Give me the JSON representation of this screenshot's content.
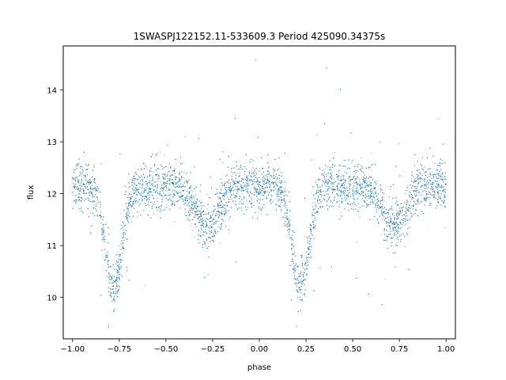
{
  "chart_data": {
    "type": "scatter",
    "title": "1SWASPJ122152.11-533609.3 Period 425090.34375s",
    "xlabel": "phase",
    "ylabel": "flux",
    "xlim": [
      -1.05,
      1.05
    ],
    "ylim": [
      9.2,
      14.85
    ],
    "xticks": [
      -1.0,
      -0.75,
      -0.5,
      -0.25,
      0.0,
      0.25,
      0.5,
      0.75,
      1.0
    ],
    "xtick_labels": [
      "−1.00",
      "−0.75",
      "−0.50",
      "−0.25",
      "0.00",
      "0.25",
      "0.50",
      "0.75",
      "1.00"
    ],
    "yticks": [
      10,
      11,
      12,
      13,
      14
    ],
    "ytick_labels": [
      "10",
      "11",
      "12",
      "13",
      "14"
    ],
    "grid": false,
    "marker_color": "#1f77b4",
    "light_curve": {
      "baseline_flux": 12.15,
      "primary_eclipses": [
        {
          "phase": -0.78,
          "min_flux": 10.2
        },
        {
          "phase": 0.22,
          "min_flux": 10.2
        }
      ],
      "secondary_eclipses": [
        {
          "phase": -0.28,
          "min_flux": 11.35
        },
        {
          "phase": 0.72,
          "min_flux": 11.35
        }
      ],
      "flux_scatter": 0.22
    }
  }
}
